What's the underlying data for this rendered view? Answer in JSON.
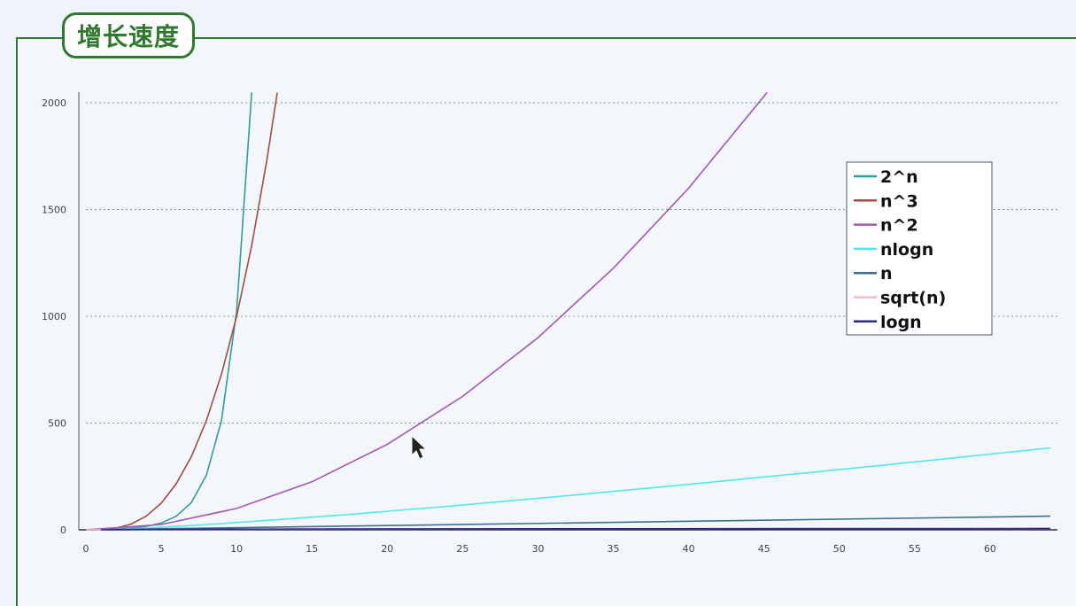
{
  "header": {
    "title": "增长速度"
  },
  "chart_data": {
    "type": "line",
    "xlim": [
      0,
      64
    ],
    "ylim": [
      0,
      2050
    ],
    "xticks": [
      0,
      5,
      10,
      15,
      20,
      25,
      30,
      35,
      40,
      45,
      50,
      55,
      60
    ],
    "yticks": [
      0,
      500,
      1000,
      1500,
      2000
    ],
    "grid": "horizontal-dotted",
    "legend_position": "right",
    "series": [
      {
        "name": "2^n",
        "color": "#2e9e9a",
        "points": [
          [
            0,
            1
          ],
          [
            1,
            2
          ],
          [
            2,
            4
          ],
          [
            3,
            8
          ],
          [
            4,
            16
          ],
          [
            5,
            32
          ],
          [
            6,
            64
          ],
          [
            7,
            128
          ],
          [
            8,
            256
          ],
          [
            9,
            512
          ],
          [
            10,
            1024
          ],
          [
            11,
            2048
          ]
        ]
      },
      {
        "name": "n^3",
        "color": "#a84a44",
        "points": [
          [
            0,
            0
          ],
          [
            1,
            1
          ],
          [
            2,
            8
          ],
          [
            3,
            27
          ],
          [
            4,
            64
          ],
          [
            5,
            125
          ],
          [
            6,
            216
          ],
          [
            7,
            343
          ],
          [
            8,
            512
          ],
          [
            9,
            729
          ],
          [
            10,
            1000
          ],
          [
            11,
            1331
          ],
          [
            12,
            1728
          ],
          [
            12.7,
            2048
          ]
        ]
      },
      {
        "name": "n^2",
        "color": "#a455b5",
        "points": [
          [
            0,
            0
          ],
          [
            5,
            25
          ],
          [
            10,
            100
          ],
          [
            15,
            225
          ],
          [
            20,
            400
          ],
          [
            25,
            625
          ],
          [
            30,
            900
          ],
          [
            35,
            1225
          ],
          [
            40,
            1600
          ],
          [
            45.2,
            2048
          ]
        ]
      },
      {
        "name": "nlogn",
        "color": "#4fe6ee",
        "points": [
          [
            1,
            0
          ],
          [
            2,
            2
          ],
          [
            4,
            8
          ],
          [
            8,
            24
          ],
          [
            16,
            64
          ],
          [
            24,
            110
          ],
          [
            32,
            160
          ],
          [
            40,
            213
          ],
          [
            48,
            268
          ],
          [
            56,
            325
          ],
          [
            64,
            384
          ]
        ]
      },
      {
        "name": "n",
        "color": "#3f6f8e",
        "points": [
          [
            0,
            0
          ],
          [
            64,
            64
          ]
        ]
      },
      {
        "name": "sqrt(n)",
        "color": "#f4b8d2",
        "points": [
          [
            0,
            0
          ],
          [
            4,
            2
          ],
          [
            16,
            4
          ],
          [
            36,
            6
          ],
          [
            64,
            8
          ]
        ]
      },
      {
        "name": "logn",
        "color": "#2a2a8a",
        "points": [
          [
            1,
            0
          ],
          [
            2,
            1
          ],
          [
            4,
            2
          ],
          [
            8,
            3
          ],
          [
            16,
            4
          ],
          [
            32,
            5
          ],
          [
            64,
            6
          ]
        ]
      }
    ]
  }
}
